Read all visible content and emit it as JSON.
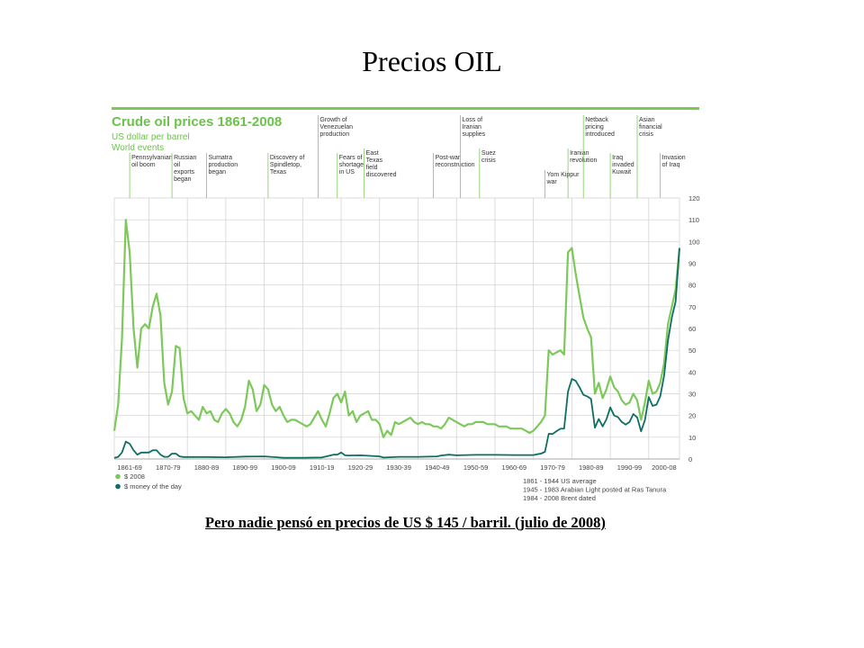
{
  "slide": {
    "title": "Precios OIL",
    "caption": "Pero nadie pensó en precios de US $ 145  / barril. (julio de 2008)"
  },
  "chart_data": {
    "type": "line",
    "title": "Crude oil prices 1861-2008",
    "subtitle": "US dollar per barrel",
    "subtitle2": "World events",
    "x_categories": [
      "1861-69",
      "1870-79",
      "1880-89",
      "1890-99",
      "1900-09",
      "1910-19",
      "1920-29",
      "1930-39",
      "1940-49",
      "1950-59",
      "1960-69",
      "1970-79",
      "1980-89",
      "1990-99",
      "2000-08"
    ],
    "xlim": [
      1861,
      2008
    ],
    "y_ticks": [
      0,
      10,
      20,
      30,
      40,
      50,
      60,
      70,
      80,
      90,
      100,
      110,
      120
    ],
    "ylim": [
      0,
      120
    ],
    "ylabel_position": "right",
    "grid": true,
    "legend_position": "bottom-left",
    "series": [
      {
        "name": "$ 2008",
        "color": "#7cc95a",
        "points": [
          [
            1861,
            13
          ],
          [
            1862,
            25
          ],
          [
            1863,
            55
          ],
          [
            1864,
            110
          ],
          [
            1865,
            95
          ],
          [
            1866,
            60
          ],
          [
            1867,
            42
          ],
          [
            1868,
            60
          ],
          [
            1869,
            62
          ],
          [
            1870,
            60
          ],
          [
            1871,
            70
          ],
          [
            1872,
            76
          ],
          [
            1873,
            66
          ],
          [
            1874,
            35
          ],
          [
            1875,
            25
          ],
          [
            1876,
            31
          ],
          [
            1877,
            52
          ],
          [
            1878,
            51
          ],
          [
            1879,
            28
          ],
          [
            1880,
            21
          ],
          [
            1881,
            22
          ],
          [
            1882,
            20
          ],
          [
            1883,
            18
          ],
          [
            1884,
            24
          ],
          [
            1885,
            21
          ],
          [
            1886,
            22
          ],
          [
            1887,
            18
          ],
          [
            1888,
            17
          ],
          [
            1889,
            21
          ],
          [
            1890,
            23
          ],
          [
            1891,
            21
          ],
          [
            1892,
            17
          ],
          [
            1893,
            15
          ],
          [
            1894,
            18
          ],
          [
            1895,
            24
          ],
          [
            1896,
            36
          ],
          [
            1897,
            32
          ],
          [
            1898,
            22
          ],
          [
            1899,
            25
          ],
          [
            1900,
            34
          ],
          [
            1901,
            32
          ],
          [
            1902,
            25
          ],
          [
            1903,
            22
          ],
          [
            1904,
            24
          ],
          [
            1905,
            20
          ],
          [
            1906,
            17
          ],
          [
            1907,
            18
          ],
          [
            1908,
            18
          ],
          [
            1909,
            17
          ],
          [
            1910,
            16
          ],
          [
            1911,
            15
          ],
          [
            1912,
            16
          ],
          [
            1913,
            19
          ],
          [
            1914,
            22
          ],
          [
            1915,
            18
          ],
          [
            1916,
            15
          ],
          [
            1917,
            21
          ],
          [
            1918,
            28
          ],
          [
            1919,
            30
          ],
          [
            1920,
            26
          ],
          [
            1921,
            31
          ],
          [
            1922,
            20
          ],
          [
            1923,
            22
          ],
          [
            1924,
            17
          ],
          [
            1925,
            20
          ],
          [
            1926,
            21
          ],
          [
            1927,
            22
          ],
          [
            1928,
            18
          ],
          [
            1929,
            18
          ],
          [
            1930,
            16
          ],
          [
            1931,
            10
          ],
          [
            1932,
            13
          ],
          [
            1933,
            11
          ],
          [
            1934,
            17
          ],
          [
            1935,
            16
          ],
          [
            1936,
            17
          ],
          [
            1937,
            18
          ],
          [
            1938,
            19
          ],
          [
            1939,
            17
          ],
          [
            1940,
            16
          ],
          [
            1941,
            17
          ],
          [
            1942,
            16
          ],
          [
            1943,
            16
          ],
          [
            1944,
            15
          ],
          [
            1945,
            15
          ],
          [
            1946,
            14
          ],
          [
            1947,
            16
          ],
          [
            1948,
            19
          ],
          [
            1949,
            18
          ],
          [
            1950,
            17
          ],
          [
            1951,
            16
          ],
          [
            1952,
            15
          ],
          [
            1953,
            16
          ],
          [
            1954,
            16
          ],
          [
            1955,
            17
          ],
          [
            1956,
            17
          ],
          [
            1957,
            17
          ],
          [
            1958,
            16
          ],
          [
            1959,
            16
          ],
          [
            1960,
            16
          ],
          [
            1961,
            15
          ],
          [
            1962,
            15
          ],
          [
            1963,
            15
          ],
          [
            1964,
            14
          ],
          [
            1965,
            14
          ],
          [
            1966,
            14
          ],
          [
            1967,
            14
          ],
          [
            1968,
            13
          ],
          [
            1969,
            12
          ],
          [
            1970,
            13
          ],
          [
            1971,
            15
          ],
          [
            1972,
            17
          ],
          [
            1973,
            20
          ],
          [
            1974,
            50
          ],
          [
            1975,
            48
          ],
          [
            1976,
            49
          ],
          [
            1977,
            50
          ],
          [
            1978,
            48
          ],
          [
            1979,
            95
          ],
          [
            1980,
            97
          ],
          [
            1981,
            85
          ],
          [
            1982,
            75
          ],
          [
            1983,
            65
          ],
          [
            1984,
            60
          ],
          [
            1985,
            56
          ],
          [
            1986,
            30
          ],
          [
            1987,
            35
          ],
          [
            1988,
            28
          ],
          [
            1989,
            32
          ],
          [
            1990,
            38
          ],
          [
            1991,
            33
          ],
          [
            1992,
            31
          ],
          [
            1993,
            27
          ],
          [
            1994,
            25
          ],
          [
            1995,
            26
          ],
          [
            1996,
            30
          ],
          [
            1997,
            27
          ],
          [
            1998,
            18
          ],
          [
            1999,
            26
          ],
          [
            2000,
            36
          ],
          [
            2001,
            30
          ],
          [
            2002,
            31
          ],
          [
            2003,
            35
          ],
          [
            2004,
            44
          ],
          [
            2005,
            62
          ],
          [
            2006,
            70
          ],
          [
            2007,
            78
          ],
          [
            2008,
            97
          ]
        ]
      },
      {
        "name": "$ money of the day",
        "color": "#0e6e62",
        "points": [
          [
            1861,
            0.5
          ],
          [
            1862,
            1
          ],
          [
            1863,
            3
          ],
          [
            1864,
            8
          ],
          [
            1865,
            7
          ],
          [
            1866,
            4
          ],
          [
            1867,
            2
          ],
          [
            1868,
            3
          ],
          [
            1869,
            3
          ],
          [
            1870,
            3
          ],
          [
            1871,
            4
          ],
          [
            1872,
            4
          ],
          [
            1873,
            2
          ],
          [
            1874,
            1
          ],
          [
            1875,
            1
          ],
          [
            1876,
            2.5
          ],
          [
            1877,
            2.5
          ],
          [
            1878,
            1.2
          ],
          [
            1879,
            0.9
          ],
          [
            1880,
            0.9
          ],
          [
            1885,
            0.9
          ],
          [
            1890,
            0.8
          ],
          [
            1895,
            1.1
          ],
          [
            1900,
            1.2
          ],
          [
            1905,
            0.6
          ],
          [
            1910,
            0.6
          ],
          [
            1915,
            0.7
          ],
          [
            1918,
            2
          ],
          [
            1919,
            2
          ],
          [
            1920,
            3
          ],
          [
            1921,
            1.7
          ],
          [
            1922,
            1.6
          ],
          [
            1925,
            1.7
          ],
          [
            1930,
            1.2
          ],
          [
            1931,
            0.65
          ],
          [
            1935,
            1
          ],
          [
            1940,
            1
          ],
          [
            1945,
            1.2
          ],
          [
            1946,
            1.6
          ],
          [
            1948,
            2
          ],
          [
            1950,
            1.7
          ],
          [
            1955,
            1.9
          ],
          [
            1960,
            1.9
          ],
          [
            1965,
            1.8
          ],
          [
            1969,
            1.8
          ],
          [
            1970,
            1.8
          ],
          [
            1971,
            2.2
          ],
          [
            1972,
            2.5
          ],
          [
            1973,
            3.3
          ],
          [
            1974,
            11.6
          ],
          [
            1975,
            11.5
          ],
          [
            1976,
            12.8
          ],
          [
            1977,
            13.9
          ],
          [
            1978,
            14
          ],
          [
            1979,
            31
          ],
          [
            1980,
            36.8
          ],
          [
            1981,
            35.9
          ],
          [
            1982,
            33
          ],
          [
            1983,
            29.5
          ],
          [
            1984,
            28.8
          ],
          [
            1985,
            27.6
          ],
          [
            1986,
            14.4
          ],
          [
            1987,
            18.4
          ],
          [
            1988,
            15
          ],
          [
            1989,
            18.2
          ],
          [
            1990,
            23.7
          ],
          [
            1991,
            20
          ],
          [
            1992,
            19.3
          ],
          [
            1993,
            17
          ],
          [
            1994,
            15.8
          ],
          [
            1995,
            17
          ],
          [
            1996,
            20.7
          ],
          [
            1997,
            19.1
          ],
          [
            1998,
            12.7
          ],
          [
            1999,
            17.9
          ],
          [
            2000,
            28.5
          ],
          [
            2001,
            24.4
          ],
          [
            2002,
            25
          ],
          [
            2003,
            28.8
          ],
          [
            2004,
            38.3
          ],
          [
            2005,
            54.5
          ],
          [
            2006,
            65.1
          ],
          [
            2007,
            72.4
          ],
          [
            2008,
            97
          ]
        ]
      }
    ],
    "events": [
      {
        "year": 1865,
        "lines": [
          "Pennsylvanian",
          "oil boom"
        ],
        "tier": 2
      },
      {
        "year": 1876,
        "lines": [
          "Russian",
          "oil",
          "exports",
          "began"
        ],
        "tier": 2
      },
      {
        "year": 1885,
        "lines": [
          "Sumatra",
          "production",
          "began"
        ],
        "tier": 2
      },
      {
        "year": 1901,
        "lines": [
          "Discovery of",
          "Spindletop,",
          "Texas"
        ],
        "tier": 2
      },
      {
        "year": 1914,
        "lines": [
          "Growth of",
          "Venezuelan",
          "production"
        ],
        "tier": 0
      },
      {
        "year": 1919,
        "lines": [
          "Fears of",
          "shortage",
          "in US"
        ],
        "tier": 2
      },
      {
        "year": 1926,
        "lines": [
          "East",
          "Texas",
          "field",
          "discovered"
        ],
        "tier": 1
      },
      {
        "year": 1944,
        "lines": [
          "Post-war",
          "reconstruction"
        ],
        "tier": 2
      },
      {
        "year": 1951,
        "lines": [
          "Loss of",
          "Iranian",
          "supplies"
        ],
        "tier": 0
      },
      {
        "year": 1956,
        "lines": [
          "Suez",
          "crisis"
        ],
        "tier": 1
      },
      {
        "year": 1973,
        "lines": [
          "Yom Kippur",
          "war"
        ],
        "tier": 3
      },
      {
        "year": 1979,
        "lines": [
          "Iranian",
          "revolution"
        ],
        "tier": 1
      },
      {
        "year": 1983,
        "lines": [
          "Netback",
          "pricing",
          "introduced"
        ],
        "tier": 0
      },
      {
        "year": 1990,
        "lines": [
          "Iraq",
          "invaded",
          "Kuwait"
        ],
        "tier": 2
      },
      {
        "year": 1997,
        "lines": [
          "Asian",
          "financial",
          "crisis"
        ],
        "tier": 0
      },
      {
        "year": 2003,
        "lines": [
          "Invasion",
          "of Iraq"
        ],
        "tier": 2
      }
    ],
    "source_notes": [
      "1861 - 1944 US average",
      "1945 - 1983 Arabian Light posted at Ras Tanura",
      "1984 - 2008 Brent dated"
    ]
  }
}
